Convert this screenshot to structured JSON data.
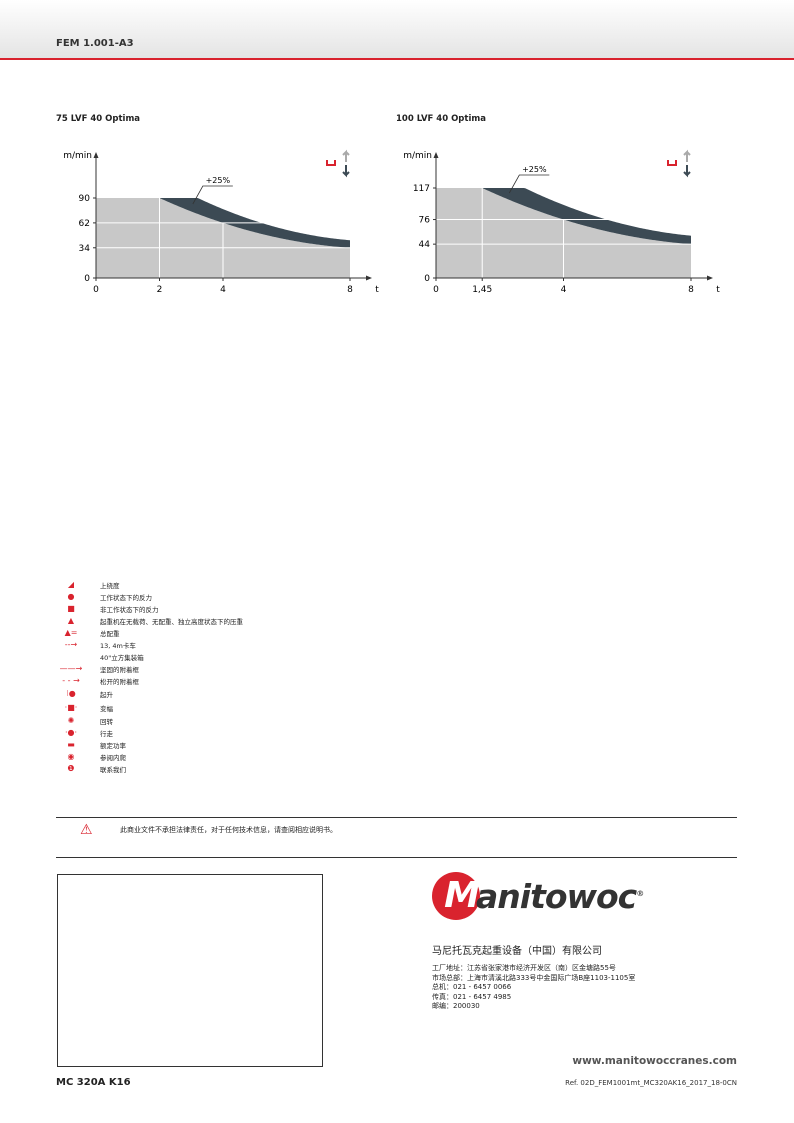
{
  "header": {
    "doc_code": "FEM 1.001-A3"
  },
  "chart_data": [
    {
      "type": "area",
      "title": "75 LVF 40 Optima",
      "ylabel": "m/min",
      "xlabel": "t",
      "x_ticks": [
        "0",
        "2",
        "4",
        "8"
      ],
      "x_tick_values": [
        0,
        2,
        4,
        8
      ],
      "y_ticks": [
        "0",
        "34",
        "62",
        "90"
      ],
      "y_tick_values": [
        0,
        34,
        62,
        90
      ],
      "xlim": [
        0,
        8
      ],
      "ylim": [
        0,
        90
      ],
      "series": [
        {
          "x": [
            0,
            2,
            4,
            8
          ],
          "y": [
            90,
            90,
            62,
            34
          ]
        }
      ],
      "boost_label": "+25%",
      "boost_factor": 1.25,
      "colors": {
        "base": "#c8c8c8",
        "boost": "#3c4a54"
      }
    },
    {
      "type": "area",
      "title": "100 LVF 40 Optima",
      "ylabel": "m/min",
      "xlabel": "t",
      "x_ticks": [
        "0",
        "1,45",
        "4",
        "8"
      ],
      "x_tick_values": [
        0,
        1.45,
        4,
        8
      ],
      "y_ticks": [
        "0",
        "44",
        "76",
        "117"
      ],
      "y_tick_values": [
        0,
        44,
        76,
        117
      ],
      "xlim": [
        0,
        8
      ],
      "ylim": [
        0,
        117
      ],
      "series": [
        {
          "x": [
            0,
            1.45,
            4,
            8
          ],
          "y": [
            117,
            117,
            76,
            44
          ]
        }
      ],
      "boost_label": "+25%",
      "boost_factor": 1.25,
      "colors": {
        "base": "#c8c8c8",
        "boost": "#3c4a54"
      }
    }
  ],
  "legend": [
    {
      "icon": "slope-icon",
      "glyph": "◢",
      "label": "上绕度"
    },
    {
      "icon": "dot-icon",
      "glyph": "●",
      "label": "工作状态下的反力"
    },
    {
      "icon": "square-icon",
      "glyph": "■",
      "label": "非工作状态下的反力"
    },
    {
      "icon": "mound-icon",
      "glyph": "▲",
      "label": "起重机在无载荷、无配重、独立高度状态下的压重"
    },
    {
      "icon": "counterweight-icon",
      "glyph": "▲=",
      "label": "总配重"
    },
    {
      "icon": "truck-icon",
      "glyph": "--→",
      "label": "13, 4m卡车"
    },
    {
      "icon": "container-icon",
      "glyph": "",
      "label": "40\"立方集装箱"
    },
    {
      "icon": "solid-arrow-icon",
      "glyph": "——→",
      "label": "坚固的附着框"
    },
    {
      "icon": "dashed-arrow-icon",
      "glyph": "- - →",
      "label": "松开的附着框"
    },
    {
      "icon": "hoist-icon",
      "glyph": "⁝●",
      "label": "起升"
    },
    {
      "icon": "trolley-icon",
      "glyph": "·■·",
      "label": "变幅"
    },
    {
      "icon": "slew-icon",
      "glyph": "✺",
      "label": "回转"
    },
    {
      "icon": "travel-icon",
      "glyph": "·●·",
      "label": "行走"
    },
    {
      "icon": "power-icon",
      "glyph": "▬",
      "label": "额定功率"
    },
    {
      "icon": "eye-icon",
      "glyph": "◉",
      "label": "参阅内爬"
    },
    {
      "icon": "info-icon",
      "glyph": "❶",
      "label": "联系我们"
    }
  ],
  "warning": {
    "text": "此商业文件不承担法律责任，对于任何技术信息，请查阅相应说明书。"
  },
  "brand": {
    "logo_text": "Manitowoc",
    "accent": "#d9232e"
  },
  "company": {
    "name": "马尼托瓦克起重设备（中国）有限公司",
    "lines": [
      "工厂地址：江苏省张家港市经济开发区（南）区金塘路55号",
      "市场总部：上海市清溪北路333号中金国际广场B座1103-1105室",
      "总机：021 - 6457 0066",
      "传真：021 - 6457 4985",
      "邮编：200030"
    ]
  },
  "footer": {
    "url": "www.manitowoccranes.com",
    "model": "MC 320A K16",
    "ref": "Ref. 02D_FEM1001mt_MC320AK16_2017_18-0CN"
  }
}
